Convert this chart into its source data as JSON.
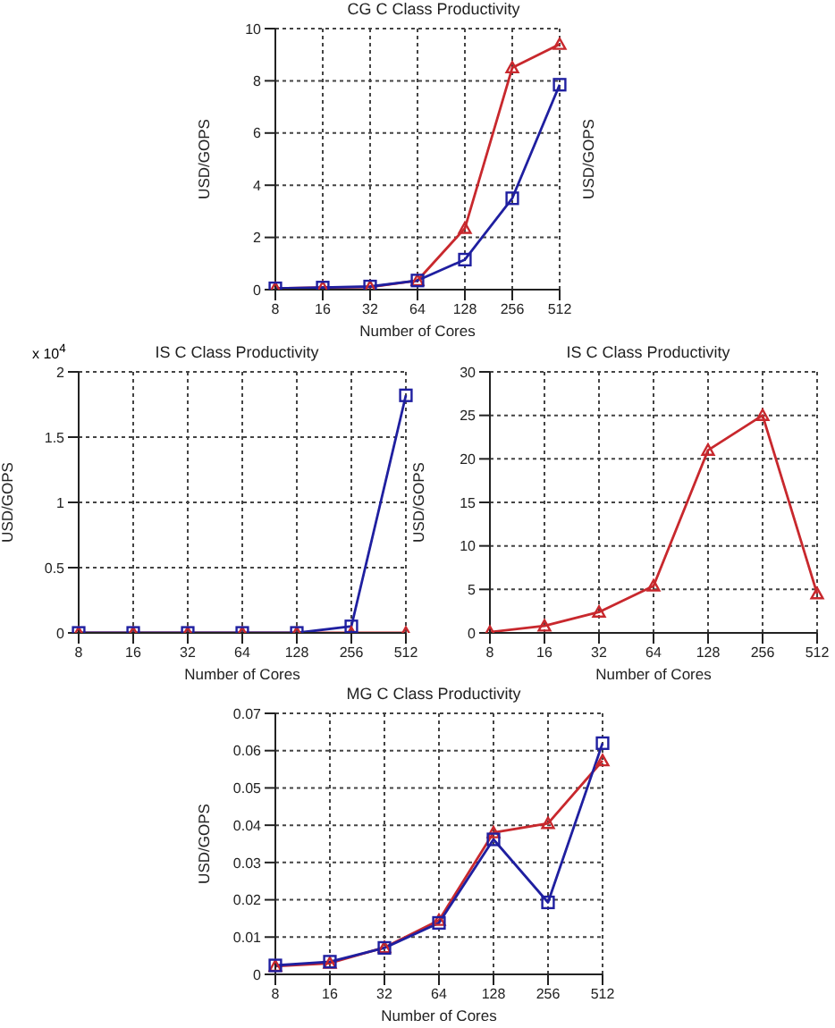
{
  "chart_data": [
    {
      "type": "line",
      "title": "CG C Class Productivity",
      "xlabel": "Number of Cores",
      "ylabel": "USD/GOPS",
      "y2label": "USD/GOPS",
      "categories": [
        "8",
        "16",
        "32",
        "64",
        "128",
        "256",
        "512"
      ],
      "ylim": [
        0,
        10
      ],
      "yticks": [
        0,
        2,
        4,
        6,
        8,
        10
      ],
      "grid": true,
      "line_style": "solid",
      "legend": false,
      "series": [
        {
          "color": "#c8282d",
          "marker": "triangle",
          "values": [
            0.05,
            0.08,
            0.1,
            0.35,
            2.35,
            8.5,
            9.4
          ]
        },
        {
          "color": "#1f1fa0",
          "marker": "square",
          "values": [
            0.05,
            0.08,
            0.12,
            0.35,
            1.15,
            3.5,
            7.85
          ]
        }
      ]
    },
    {
      "type": "line",
      "title": "IS C Class Productivity",
      "xlabel": "Number of Cores",
      "ylabel": "USD/GOPS",
      "annotations": [
        "x 10$^{4}$"
      ],
      "categories": [
        "8",
        "16",
        "32",
        "64",
        "128",
        "256",
        "512"
      ],
      "ylim": [
        0,
        2
      ],
      "yticks": [
        0,
        0.5,
        1,
        1.5,
        2
      ],
      "grid": true,
      "line_style": "solid",
      "legend": false,
      "series": [
        {
          "color": "#c8282d",
          "marker": "triangle",
          "values": [
            0,
            0,
            0,
            0,
            0,
            0,
            0
          ]
        },
        {
          "color": "#1f1fa0",
          "marker": "square",
          "values": [
            0,
            0,
            0,
            0,
            0,
            0.05,
            1.82
          ]
        }
      ]
    },
    {
      "type": "line",
      "title": "IS C Class Productivity",
      "xlabel": "Number of Cores",
      "ylabel": "USD/GOPS",
      "categories": [
        "8",
        "16",
        "32",
        "64",
        "128",
        "256",
        "512"
      ],
      "ylim": [
        0,
        30
      ],
      "yticks": [
        0,
        5,
        10,
        15,
        20,
        25,
        30
      ],
      "grid": true,
      "line_style": "solid",
      "legend": false,
      "series": [
        {
          "color": "#c8282d",
          "marker": "triangle",
          "values": [
            0.1,
            0.8,
            2.4,
            5.4,
            21,
            25,
            4.5
          ]
        }
      ]
    },
    {
      "type": "line",
      "title": "MG C Class Productivity",
      "xlabel": "Number of Cores",
      "ylabel": "USD/GOPS",
      "categories": [
        "8",
        "16",
        "32",
        "64",
        "128",
        "256",
        "512"
      ],
      "ylim": [
        0,
        0.07
      ],
      "yticks": [
        0,
        0.01,
        0.02,
        0.03,
        0.04,
        0.05,
        0.06,
        0.07
      ],
      "grid": true,
      "line_style": "solid",
      "legend": false,
      "series": [
        {
          "color": "#c8282d",
          "marker": "triangle",
          "values": [
            0.0022,
            0.003,
            0.0072,
            0.0145,
            0.038,
            0.0405,
            0.0573
          ]
        },
        {
          "color": "#1f1fa0",
          "marker": "square",
          "values": [
            0.0024,
            0.0034,
            0.0071,
            0.0138,
            0.0362,
            0.0193,
            0.062
          ]
        }
      ]
    }
  ]
}
